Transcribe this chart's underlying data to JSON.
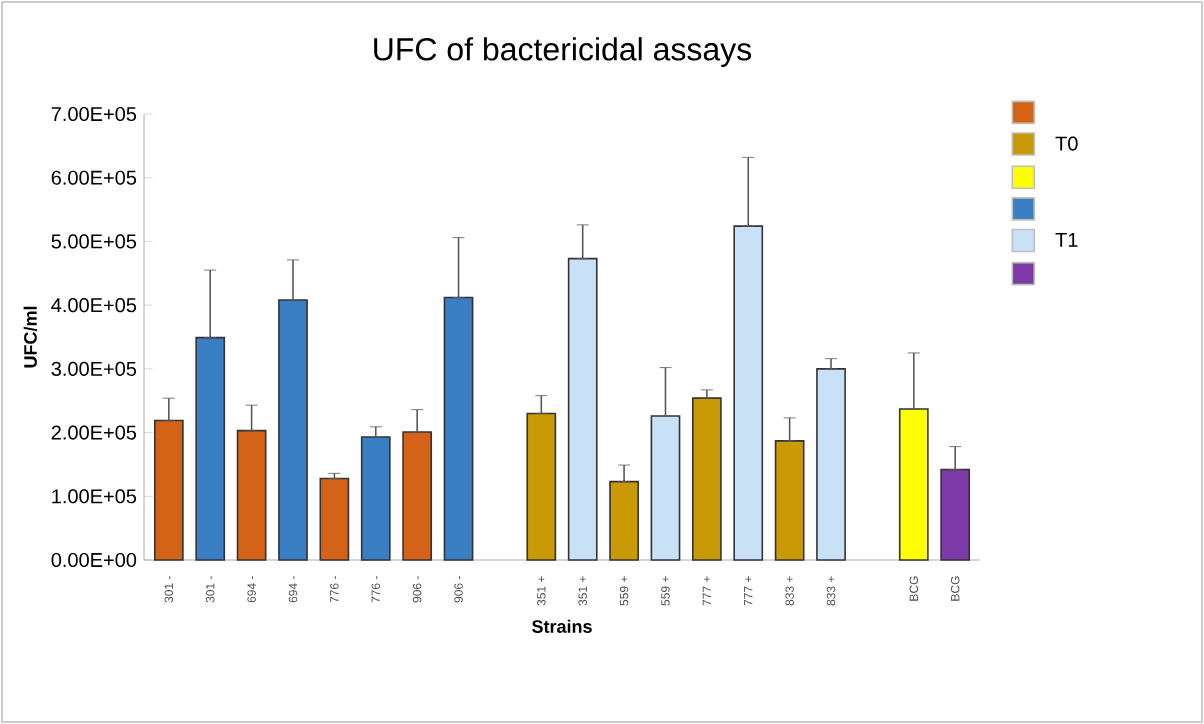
{
  "chart_data": {
    "type": "bar",
    "title": "UFC of bactericidal assays",
    "xlabel": "Strains",
    "ylabel": "UFC/ml",
    "categories": [
      "301 -",
      "301 -",
      "694 -",
      "694 -",
      "776 -",
      "776 -",
      "906 -",
      "906 -",
      null,
      "351 +",
      "351 +",
      "559 +",
      "559 +",
      "777 +",
      "777 +",
      "833 +",
      "833 +",
      null,
      "BCG",
      "BCG"
    ],
    "ylim": [
      0,
      700000
    ],
    "yticks": [
      {
        "value": 0,
        "label": "0.00E+00"
      },
      {
        "value": 100000,
        "label": "1.00E+05"
      },
      {
        "value": 200000,
        "label": "2.00E+05"
      },
      {
        "value": 300000,
        "label": "3.00E+05"
      },
      {
        "value": 400000,
        "label": "4.00E+05"
      },
      {
        "value": 500000,
        "label": "5.00E+05"
      },
      {
        "value": 600000,
        "label": "6.00E+05"
      },
      {
        "value": 700000,
        "label": "7.00E+05"
      }
    ],
    "legend": "right",
    "series": [
      {
        "color": "#d46318",
        "values": [
          219000,
          null,
          203000,
          null,
          128000,
          null,
          201000,
          null,
          null,
          null,
          null,
          null,
          null,
          null,
          null,
          null,
          null,
          null,
          null,
          null
        ],
        "errors": [
          [
            219000,
            254000
          ],
          null,
          [
            203000,
            243000
          ],
          null,
          [
            128000,
            136000
          ],
          null,
          [
            201000,
            236000
          ],
          null,
          null,
          null,
          null,
          null,
          null,
          null,
          null,
          null,
          null,
          null,
          null,
          null
        ]
      },
      {
        "name": "T0",
        "color": "#c99a06",
        "values": [
          null,
          null,
          null,
          null,
          null,
          null,
          null,
          null,
          null,
          230000,
          null,
          123000,
          null,
          254000,
          null,
          187000,
          null,
          null,
          null,
          null
        ],
        "errors": [
          null,
          null,
          null,
          null,
          null,
          null,
          null,
          null,
          null,
          [
            230000,
            258000
          ],
          null,
          [
            123000,
            149000
          ],
          null,
          [
            254000,
            267000
          ],
          null,
          [
            187000,
            223000
          ],
          null,
          null,
          null,
          null
        ]
      },
      {
        "color": "#ffff00",
        "values": [
          null,
          null,
          null,
          null,
          null,
          null,
          null,
          null,
          null,
          null,
          null,
          null,
          null,
          null,
          null,
          null,
          null,
          null,
          237000,
          null
        ],
        "errors": [
          null,
          null,
          null,
          null,
          null,
          null,
          null,
          null,
          null,
          null,
          null,
          null,
          null,
          null,
          null,
          null,
          null,
          null,
          [
            237000,
            325000
          ],
          null
        ]
      },
      {
        "color": "#3a7fc4",
        "values": [
          null,
          349000,
          null,
          408000,
          null,
          193000,
          null,
          412000,
          null,
          null,
          null,
          null,
          null,
          null,
          null,
          null,
          null,
          null,
          null,
          null
        ],
        "errors": [
          null,
          [
            349000,
            455000
          ],
          null,
          [
            408000,
            471000
          ],
          null,
          [
            193000,
            209000
          ],
          null,
          [
            412000,
            506000
          ],
          null,
          null,
          null,
          null,
          null,
          null,
          null,
          null,
          null,
          null,
          null,
          null
        ]
      },
      {
        "name": "T1",
        "color": "#c8e1f6",
        "values": [
          null,
          null,
          null,
          null,
          null,
          null,
          null,
          null,
          null,
          null,
          473000,
          null,
          226000,
          null,
          524000,
          null,
          300000,
          null,
          null,
          null
        ],
        "errors": [
          null,
          null,
          null,
          null,
          null,
          null,
          null,
          null,
          null,
          null,
          [
            473000,
            526000
          ],
          null,
          [
            226000,
            302000
          ],
          null,
          [
            524000,
            632000
          ],
          null,
          [
            300000,
            316000
          ],
          null,
          null,
          null
        ]
      },
      {
        "color": "#7b3aa8",
        "values": [
          null,
          null,
          null,
          null,
          null,
          null,
          null,
          null,
          null,
          null,
          null,
          null,
          null,
          null,
          null,
          null,
          null,
          null,
          null,
          142000
        ],
        "errors": [
          null,
          null,
          null,
          null,
          null,
          null,
          null,
          null,
          null,
          null,
          null,
          null,
          null,
          null,
          null,
          null,
          null,
          null,
          null,
          [
            142000,
            178000
          ]
        ]
      }
    ]
  }
}
